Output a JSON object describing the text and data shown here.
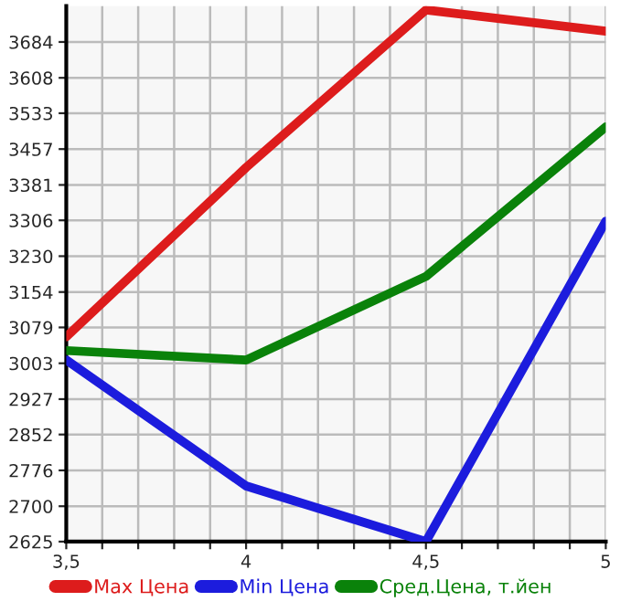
{
  "chart_data": {
    "type": "line",
    "x": [
      3.5,
      4,
      4.5,
      5
    ],
    "series": [
      {
        "name": "Max Цена",
        "color": "#dd1c1c",
        "values": [
          3059,
          3418,
          3752,
          3707
        ]
      },
      {
        "name": "Min Цена",
        "color": "#1c1cdd",
        "values": [
          3010,
          2743,
          2625,
          3304
        ]
      },
      {
        "name": "Сред.Цена, т.йен",
        "color": "#0a820a",
        "values": [
          3030,
          3010,
          3187,
          3504
        ]
      }
    ],
    "xlim": [
      3.5,
      5
    ],
    "xticks": [
      {
        "value": 3.5,
        "label": "3,5"
      },
      {
        "value": 3.6,
        "label": null
      },
      {
        "value": 3.7,
        "label": null
      },
      {
        "value": 3.8,
        "label": null
      },
      {
        "value": 3.9,
        "label": null
      },
      4,
      {
        "value": 4.1,
        "label": null
      },
      {
        "value": 4.2,
        "label": null
      },
      {
        "value": 4.3,
        "label": null
      },
      {
        "value": 4.4,
        "label": null
      },
      {
        "value": 4.5,
        "label": "4,5"
      },
      {
        "value": 4.6,
        "label": null
      },
      {
        "value": 4.7,
        "label": null
      },
      {
        "value": 4.8,
        "label": null
      },
      {
        "value": 4.9,
        "label": null
      },
      5
    ],
    "ylim": [
      2625,
      3760
    ],
    "yticks": [
      2625,
      2700,
      2776,
      2852,
      2927,
      3003,
      3079,
      3154,
      3230,
      3306,
      3381,
      3457,
      3533,
      3608,
      3684
    ],
    "grid": true,
    "legend": "bottom",
    "marker": "none",
    "line_style": "solid"
  }
}
